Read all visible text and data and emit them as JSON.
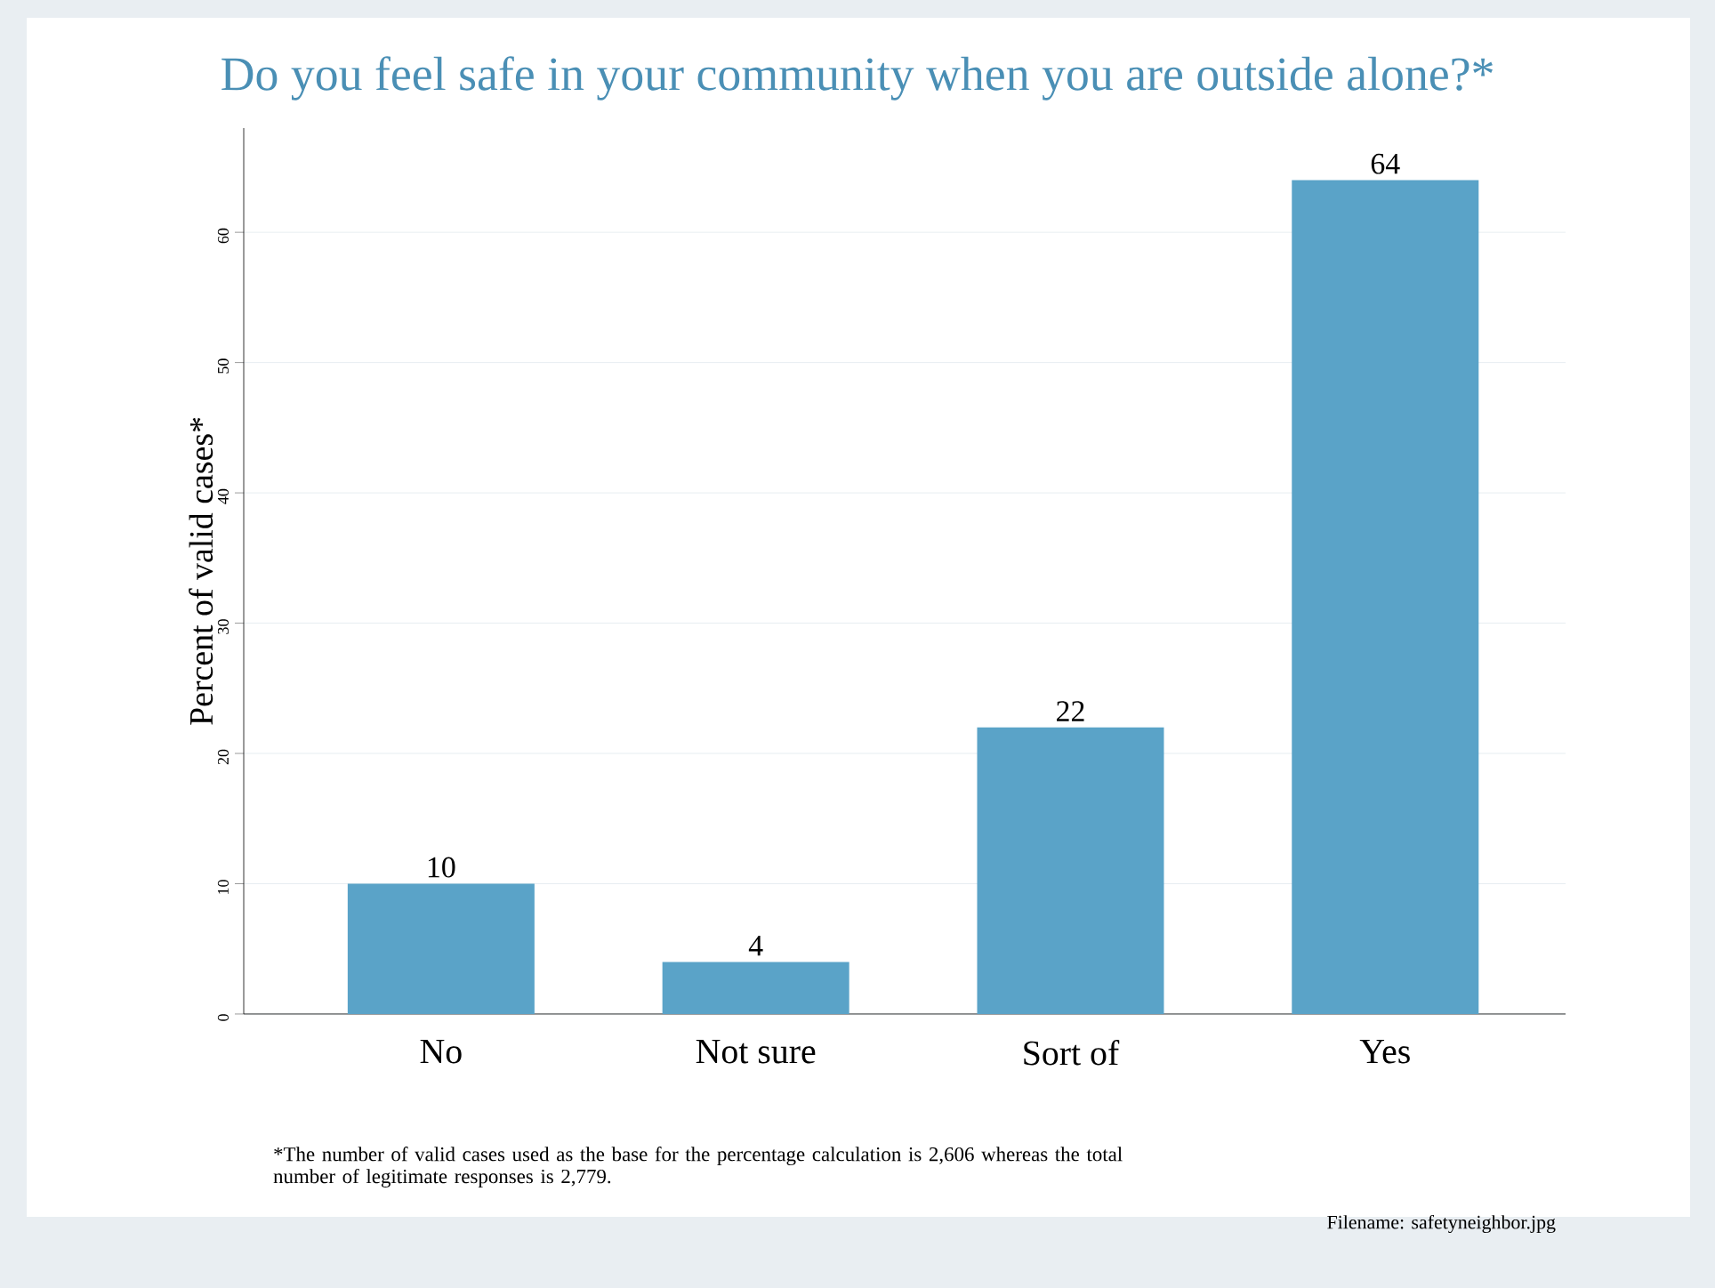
{
  "chart_data": {
    "type": "bar",
    "title": "Do you feel safe in your community when you are outside alone?*",
    "ylabel": "Percent of valid cases*",
    "categories": [
      "No",
      "Not sure",
      "Sort of",
      "Yes"
    ],
    "values": [
      10,
      4,
      22,
      64
    ],
    "color": "#5aa3c8",
    "data_labels": true,
    "ylim": [
      0,
      68
    ],
    "yticks": [
      0,
      10,
      20,
      30,
      40,
      50,
      60
    ],
    "grid": "y",
    "annotations": [
      "*The number of valid cases used as the base for the percentage calculation is  2,606 whereas the total number of legitimate responses is 2,779.",
      "Filename: safetyneighbor.jpg"
    ]
  }
}
